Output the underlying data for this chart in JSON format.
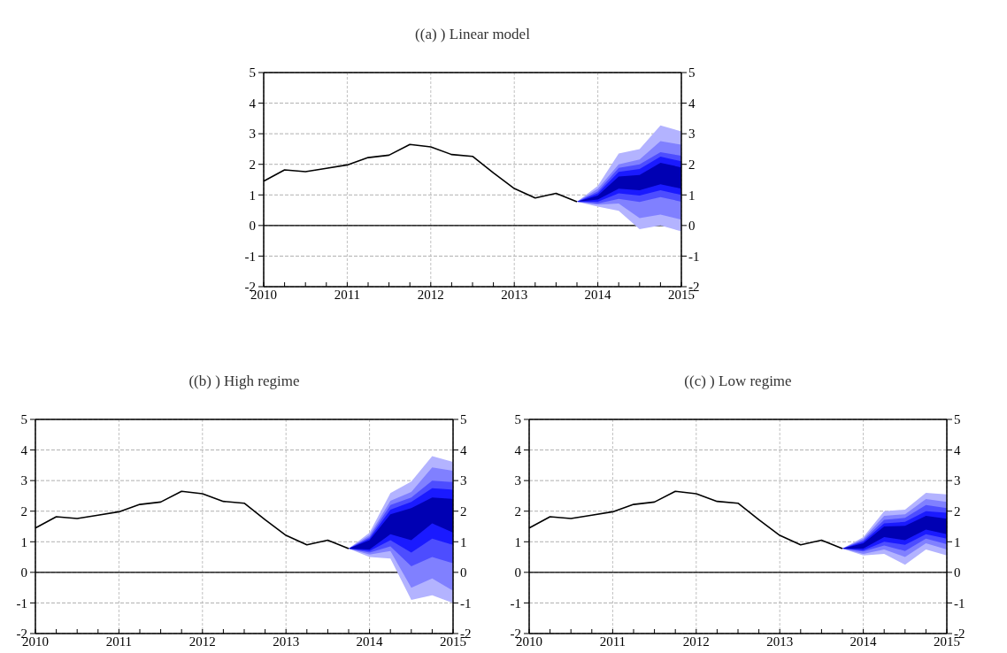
{
  "chart_data": [
    {
      "type": "line",
      "title": "((a) ) Linear model",
      "x": [
        2010,
        2010.25,
        2010.5,
        2010.75,
        2011,
        2011.25,
        2011.5,
        2011.75,
        2012,
        2012.25,
        2012.5,
        2012.75,
        2013,
        2013.25,
        2013.5,
        2013.75
      ],
      "xlim": [
        2010,
        2015
      ],
      "xticks": [
        2010,
        {
          "value": 2010.25,
          "label": null
        },
        {
          "value": 2010.5,
          "label": null
        },
        {
          "value": 2010.75,
          "label": null
        },
        2011,
        {
          "value": 2011.25,
          "label": null
        },
        {
          "value": 2011.5,
          "label": null
        },
        {
          "value": 2011.75,
          "label": null
        },
        2012,
        {
          "value": 2012.25,
          "label": null
        },
        {
          "value": 2012.5,
          "label": null
        },
        {
          "value": 2012.75,
          "label": null
        },
        2013,
        {
          "value": 2013.25,
          "label": null
        },
        {
          "value": 2013.5,
          "label": null
        },
        {
          "value": 2013.75,
          "label": null
        },
        2014,
        {
          "value": 2014.25,
          "label": null
        },
        {
          "value": 2014.5,
          "label": null
        },
        {
          "value": 2014.75,
          "label": null
        },
        2015
      ],
      "ylim": [
        -2,
        5
      ],
      "yticks": [
        -2,
        -1,
        0,
        1,
        2,
        3,
        4,
        5
      ],
      "y2lim": [
        -2,
        5
      ],
      "y2ticks": [
        -2,
        -1,
        0,
        1,
        2,
        3,
        4,
        5
      ],
      "grid": true,
      "ref_lines": [
        {
          "axis": "y",
          "value": 0,
          "color": "#000000",
          "line_style": "solid"
        }
      ],
      "series": [
        {
          "type": "area",
          "color": "#b3b3ff",
          "x": [
            2013.75,
            2014,
            2014.25,
            2014.5,
            2014.75,
            2015
          ],
          "values": [
            null,
            null,
            null,
            null,
            null,
            null
          ],
          "lower": [
            0.78,
            0.62,
            0.48,
            -0.12,
            0,
            -0.19
          ],
          "upper": [
            0.78,
            1.3,
            2.35,
            2.5,
            3.27,
            3.08
          ]
        },
        {
          "type": "area",
          "color": "#8080ff",
          "x": [
            2013.75,
            2014,
            2014.25,
            2014.5,
            2014.75,
            2015
          ],
          "values": [
            null,
            null,
            null,
            null,
            null,
            null
          ],
          "lower": [
            0.78,
            0.68,
            0.72,
            0.24,
            0.36,
            0.19
          ],
          "upper": [
            0.78,
            1.2,
            2,
            2.16,
            2.76,
            2.64
          ]
        },
        {
          "type": "area",
          "color": "#4d4dff",
          "x": [
            2013.75,
            2014,
            2014.25,
            2014.5,
            2014.75,
            2015
          ],
          "values": [
            null,
            null,
            null,
            null,
            null,
            null
          ],
          "lower": [
            0.78,
            0.72,
            0.87,
            0.77,
            0.93,
            0.78
          ],
          "upper": [
            0.78,
            1.12,
            1.88,
            2,
            2.4,
            2.28
          ]
        },
        {
          "type": "area",
          "color": "#1a1aff",
          "x": [
            2013.75,
            2014,
            2014.25,
            2014.5,
            2014.75,
            2015
          ],
          "values": [
            null,
            null,
            null,
            null,
            null,
            null
          ],
          "lower": [
            0.78,
            0.78,
            1.05,
            0.98,
            1.15,
            1
          ],
          "upper": [
            0.78,
            1.05,
            1.75,
            1.85,
            2.25,
            2.1
          ]
        },
        {
          "type": "area",
          "color": "#0000b3",
          "x": [
            2013.75,
            2014,
            2014.25,
            2014.5,
            2014.75,
            2015
          ],
          "values": [
            null,
            null,
            null,
            null,
            null,
            null
          ],
          "lower": [
            0.78,
            0.85,
            1.2,
            1.15,
            1.35,
            1.2
          ],
          "upper": [
            0.78,
            0.98,
            1.6,
            1.65,
            2.05,
            1.9
          ]
        },
        {
          "color": "#000000",
          "values": [
            1.45,
            1.82,
            1.76,
            1.87,
            1.98,
            2.22,
            2.3,
            2.65,
            2.57,
            2.32,
            2.26,
            1.72,
            1.21,
            0.9,
            1.05,
            0.78
          ]
        }
      ]
    },
    {
      "type": "line",
      "title": "((b) ) High regime",
      "x": [
        2010,
        2010.25,
        2010.5,
        2010.75,
        2011,
        2011.25,
        2011.5,
        2011.75,
        2012,
        2012.25,
        2012.5,
        2012.75,
        2013,
        2013.25,
        2013.5,
        2013.75
      ],
      "xlim": [
        2010,
        2015
      ],
      "xticks": [
        2010,
        {
          "value": 2010.25,
          "label": null
        },
        {
          "value": 2010.5,
          "label": null
        },
        {
          "value": 2010.75,
          "label": null
        },
        2011,
        {
          "value": 2011.25,
          "label": null
        },
        {
          "value": 2011.5,
          "label": null
        },
        {
          "value": 2011.75,
          "label": null
        },
        2012,
        {
          "value": 2012.25,
          "label": null
        },
        {
          "value": 2012.5,
          "label": null
        },
        {
          "value": 2012.75,
          "label": null
        },
        2013,
        {
          "value": 2013.25,
          "label": null
        },
        {
          "value": 2013.5,
          "label": null
        },
        {
          "value": 2013.75,
          "label": null
        },
        2014,
        {
          "value": 2014.25,
          "label": null
        },
        {
          "value": 2014.5,
          "label": null
        },
        {
          "value": 2014.75,
          "label": null
        },
        2015
      ],
      "ylim": [
        -2,
        5
      ],
      "yticks": [
        -2,
        -1,
        0,
        1,
        2,
        3,
        4,
        5
      ],
      "y2lim": [
        -2,
        5
      ],
      "y2ticks": [
        -2,
        -1,
        0,
        1,
        2,
        3,
        4,
        5
      ],
      "grid": true,
      "ref_lines": [
        {
          "axis": "y",
          "value": 0,
          "color": "#000000",
          "line_style": "solid"
        }
      ],
      "series": [
        {
          "type": "area",
          "color": "#b3b3ff",
          "x": [
            2013.75,
            2014,
            2014.25,
            2014.5,
            2014.75,
            2015
          ],
          "values": [
            null,
            null,
            null,
            null,
            null,
            null
          ],
          "lower": [
            0.78,
            0.5,
            0.45,
            -0.9,
            -0.75,
            -1
          ],
          "upper": [
            0.78,
            1.3,
            2.59,
            2.97,
            3.8,
            3.61
          ]
        },
        {
          "type": "area",
          "color": "#8080ff",
          "x": [
            2013.75,
            2014,
            2014.25,
            2014.5,
            2014.75,
            2015
          ],
          "values": [
            null,
            null,
            null,
            null,
            null,
            null
          ],
          "lower": [
            0.78,
            0.58,
            0.7,
            -0.5,
            -0.2,
            -0.6
          ],
          "upper": [
            0.78,
            1.22,
            2.34,
            2.63,
            3.43,
            3.32
          ]
        },
        {
          "type": "area",
          "color": "#4d4dff",
          "x": [
            2013.75,
            2014,
            2014.25,
            2014.5,
            2014.75,
            2015
          ],
          "values": [
            null,
            null,
            null,
            null,
            null,
            null
          ],
          "lower": [
            0.78,
            0.65,
            0.85,
            0.2,
            0.5,
            0.3
          ],
          "upper": [
            0.78,
            1.15,
            2.2,
            2.45,
            3,
            2.95
          ]
        },
        {
          "type": "area",
          "color": "#1a1aff",
          "x": [
            2013.75,
            2014,
            2014.25,
            2014.5,
            2014.75,
            2015
          ],
          "values": [
            null,
            null,
            null,
            null,
            null,
            null
          ],
          "lower": [
            0.78,
            0.7,
            1.05,
            0.65,
            1.1,
            0.9
          ],
          "upper": [
            0.78,
            1.1,
            2.05,
            2.3,
            2.75,
            2.7
          ]
        },
        {
          "type": "area",
          "color": "#0000b3",
          "x": [
            2013.75,
            2014,
            2014.25,
            2014.5,
            2014.75,
            2015
          ],
          "values": [
            null,
            null,
            null,
            null,
            null,
            null
          ],
          "lower": [
            0.78,
            0.75,
            1.25,
            1.05,
            1.6,
            1.3
          ],
          "upper": [
            0.78,
            1.05,
            1.9,
            2.1,
            2.45,
            2.4
          ]
        },
        {
          "color": "#000000",
          "values": [
            1.45,
            1.82,
            1.76,
            1.87,
            1.98,
            2.22,
            2.3,
            2.65,
            2.57,
            2.32,
            2.26,
            1.72,
            1.21,
            0.9,
            1.05,
            0.78
          ]
        }
      ]
    },
    {
      "type": "line",
      "title": "((c) ) Low regime",
      "x": [
        2010,
        2010.25,
        2010.5,
        2010.75,
        2011,
        2011.25,
        2011.5,
        2011.75,
        2012,
        2012.25,
        2012.5,
        2012.75,
        2013,
        2013.25,
        2013.5,
        2013.75
      ],
      "xlim": [
        2010,
        2015
      ],
      "xticks": [
        2010,
        {
          "value": 2010.25,
          "label": null
        },
        {
          "value": 2010.5,
          "label": null
        },
        {
          "value": 2010.75,
          "label": null
        },
        2011,
        {
          "value": 2011.25,
          "label": null
        },
        {
          "value": 2011.5,
          "label": null
        },
        {
          "value": 2011.75,
          "label": null
        },
        2012,
        {
          "value": 2012.25,
          "label": null
        },
        {
          "value": 2012.5,
          "label": null
        },
        {
          "value": 2012.75,
          "label": null
        },
        2013,
        {
          "value": 2013.25,
          "label": null
        },
        {
          "value": 2013.5,
          "label": null
        },
        {
          "value": 2013.75,
          "label": null
        },
        2014,
        {
          "value": 2014.25,
          "label": null
        },
        {
          "value": 2014.5,
          "label": null
        },
        {
          "value": 2014.75,
          "label": null
        },
        2015
      ],
      "ylim": [
        -2,
        5
      ],
      "yticks": [
        -2,
        -1,
        0,
        1,
        2,
        3,
        4,
        5
      ],
      "y2lim": [
        -2,
        5
      ],
      "y2ticks": [
        -2,
        -1,
        0,
        1,
        2,
        3,
        4,
        5
      ],
      "grid": true,
      "ref_lines": [
        {
          "axis": "y",
          "value": 0,
          "color": "#000000",
          "line_style": "solid"
        }
      ],
      "series": [
        {
          "type": "area",
          "color": "#b3b3ff",
          "x": [
            2013.75,
            2014,
            2014.25,
            2014.5,
            2014.75,
            2015
          ],
          "values": [
            null,
            null,
            null,
            null,
            null,
            null
          ],
          "lower": [
            0.78,
            0.55,
            0.6,
            0.25,
            0.75,
            0.55
          ],
          "upper": [
            0.78,
            1.15,
            2,
            2.05,
            2.6,
            2.55
          ]
        },
        {
          "type": "area",
          "color": "#8080ff",
          "x": [
            2013.75,
            2014,
            2014.25,
            2014.5,
            2014.75,
            2015
          ],
          "values": [
            null,
            null,
            null,
            null,
            null,
            null
          ],
          "lower": [
            0.78,
            0.6,
            0.75,
            0.5,
            0.95,
            0.75
          ],
          "upper": [
            0.78,
            1.1,
            1.85,
            1.9,
            2.4,
            2.3
          ]
        },
        {
          "type": "area",
          "color": "#4d4dff",
          "x": [
            2013.75,
            2014,
            2014.25,
            2014.5,
            2014.75,
            2015
          ],
          "values": [
            null,
            null,
            null,
            null,
            null,
            null
          ],
          "lower": [
            0.78,
            0.68,
            0.88,
            0.7,
            1.1,
            0.92
          ],
          "upper": [
            0.78,
            1.05,
            1.72,
            1.78,
            2.2,
            2.1
          ]
        },
        {
          "type": "area",
          "color": "#1a1aff",
          "x": [
            2013.75,
            2014,
            2014.25,
            2014.5,
            2014.75,
            2015
          ],
          "values": [
            null,
            null,
            null,
            null,
            null,
            null
          ],
          "lower": [
            0.78,
            0.72,
            1,
            0.9,
            1.25,
            1.1
          ],
          "upper": [
            0.78,
            1,
            1.6,
            1.65,
            2,
            1.95
          ]
        },
        {
          "type": "area",
          "color": "#0000b3",
          "x": [
            2013.75,
            2014,
            2014.25,
            2014.5,
            2014.75,
            2015
          ],
          "values": [
            null,
            null,
            null,
            null,
            null,
            null
          ],
          "lower": [
            0.78,
            0.78,
            1.15,
            1.05,
            1.4,
            1.25
          ],
          "upper": [
            0.78,
            0.95,
            1.5,
            1.52,
            1.85,
            1.75
          ]
        },
        {
          "color": "#000000",
          "values": [
            1.45,
            1.82,
            1.76,
            1.87,
            1.98,
            2.22,
            2.3,
            2.65,
            2.57,
            2.32,
            2.26,
            1.72,
            1.21,
            0.9,
            1.05,
            0.78
          ]
        }
      ]
    }
  ]
}
